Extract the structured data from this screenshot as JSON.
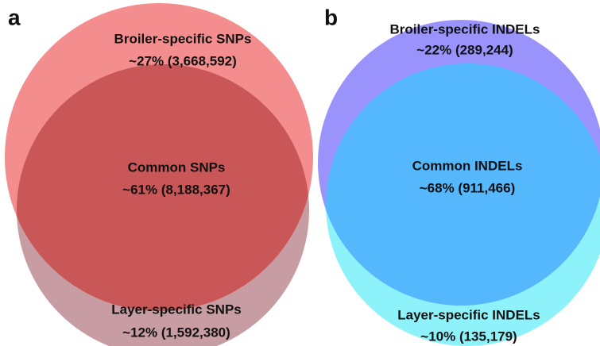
{
  "panels": [
    {
      "label": "a",
      "top": {
        "name": "Broiler-specific SNPs",
        "value": "~27% (3,668,592)"
      },
      "common": {
        "name": "Common SNPs",
        "value": "~61% (8,188,367)"
      },
      "bottom": {
        "name": "Layer-specific SNPs",
        "value": "~12% (1,592,380)"
      }
    },
    {
      "label": "b",
      "top": {
        "name": "Broiler-specific INDELs",
        "value": "~22% (289,244)"
      },
      "common": {
        "name": "Common INDELs",
        "value": "~68% (911,466)"
      },
      "bottom": {
        "name": "Layer-specific INDELs",
        "value": "~10% (135,179)"
      }
    }
  ]
}
